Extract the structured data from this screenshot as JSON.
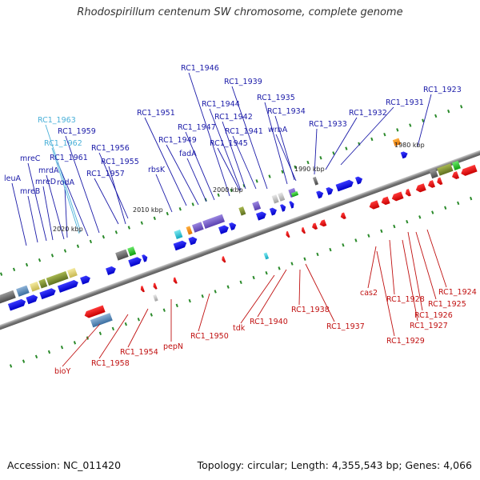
{
  "title": "Rhodospirillum centenum SW chromosome, complete genome",
  "footer": {
    "accession": "Accession: NC_011420",
    "summary": "Topology: circular; Length: 4,355,543 bp; Genes: 4,066"
  },
  "kbp_marks": [
    "1980 kbp",
    "1990 kbp",
    "2000 kbp",
    "2010 kbp",
    "2020 kbp"
  ],
  "colors": {
    "forward": "#1010e0",
    "reverse": "#e01010",
    "forward_label": "#1a1aa8",
    "reverse_label": "#c01010",
    "highlight_label": "#4ab0d8",
    "backbone": "#8a8a8a"
  },
  "top_labels": [
    "leuA",
    "mreB",
    "mreC",
    "mreD",
    "mrdA",
    "rodA",
    "RC1_1961",
    "RC1_1962",
    "RC1_1963",
    "RC1_1959",
    "RC1_1957",
    "RC1_1955",
    "RC1_1956",
    "rbsK",
    "RC1_1951",
    "RC1_1949",
    "fadA",
    "RC1_1947",
    "RC1_1946",
    "RC1_1944",
    "RC1_1942",
    "RC1_1945",
    "RC1_1941",
    "RC1_1939",
    "RC1_1935",
    "RC1_1934",
    "wrbA",
    "RC1_1933",
    "RC1_1932",
    "RC1_1931",
    "RC1_1923"
  ],
  "bottom_labels": [
    "bioY",
    "RC1_1958",
    "RC1_1954",
    "pepN",
    "RC1_1950",
    "tdk",
    "RC1_1940",
    "RC1_1938",
    "RC1_1937",
    "cas2",
    "RC1_1928",
    "RC1_1929",
    "RC1_1927",
    "RC1_1926",
    "RC1_1925",
    "RC1_1924"
  ]
}
